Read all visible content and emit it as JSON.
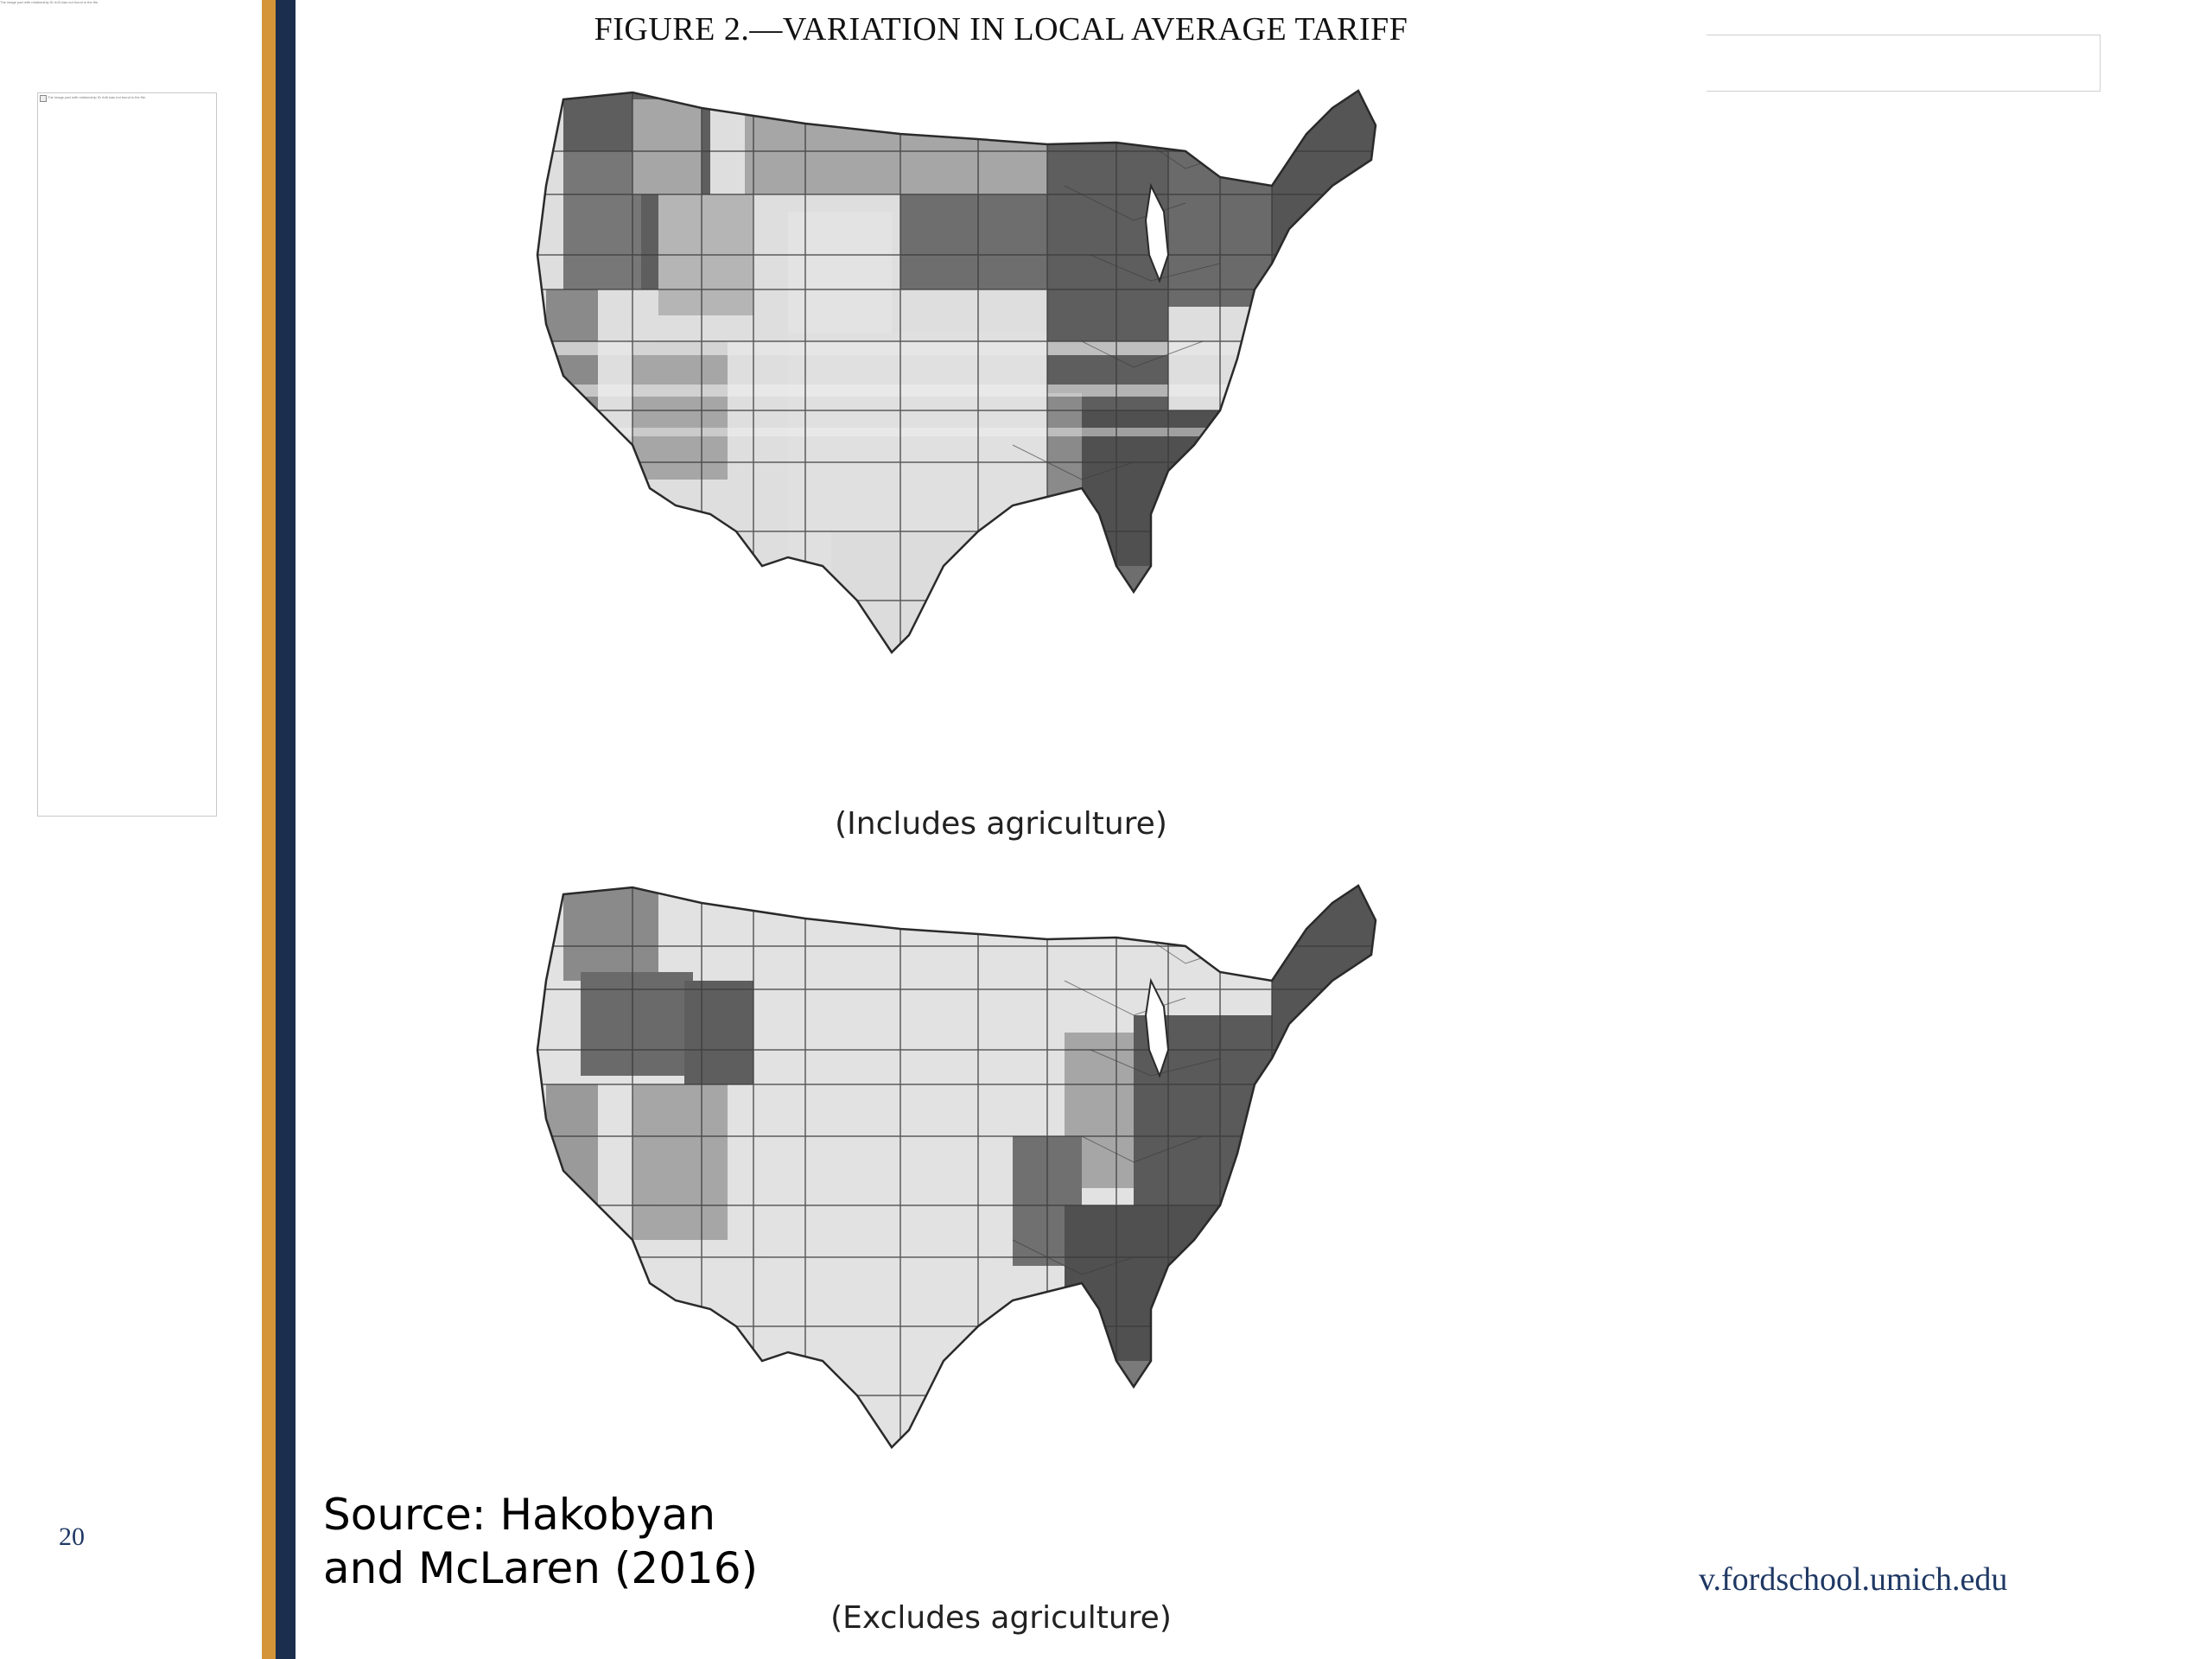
{
  "slide": {
    "tiny_note": "The image part with relationship ID rId3 was not found in the file.",
    "left_box_note": "The image part with relationship ID rId6 was not found in the file.",
    "slide_number": "20",
    "url": "www.fordschool.umich.edu",
    "url_visible": "v.fordschool.umich.edu",
    "source_line1": "Source:  Hakobyan",
    "source_line2": "and McLaren (2016)"
  },
  "figure": {
    "title": "Figure 2.—Variation in Local Average Tariff",
    "title_display": "FIGURE 2.—VARIATION IN LOCAL AVERAGE TARIFF",
    "maps": [
      {
        "caption": "(Includes agriculture)"
      },
      {
        "caption": "(Excludes agriculture)"
      }
    ]
  },
  "colors": {
    "gold": "#d39537",
    "navy": "#1b2e4d",
    "shade_light": "#dedede",
    "shade_mid": "#a6a6a6",
    "shade_dark": "#6a6a6a",
    "shade_darker": "#505050",
    "outline": "#2a2a2a"
  }
}
